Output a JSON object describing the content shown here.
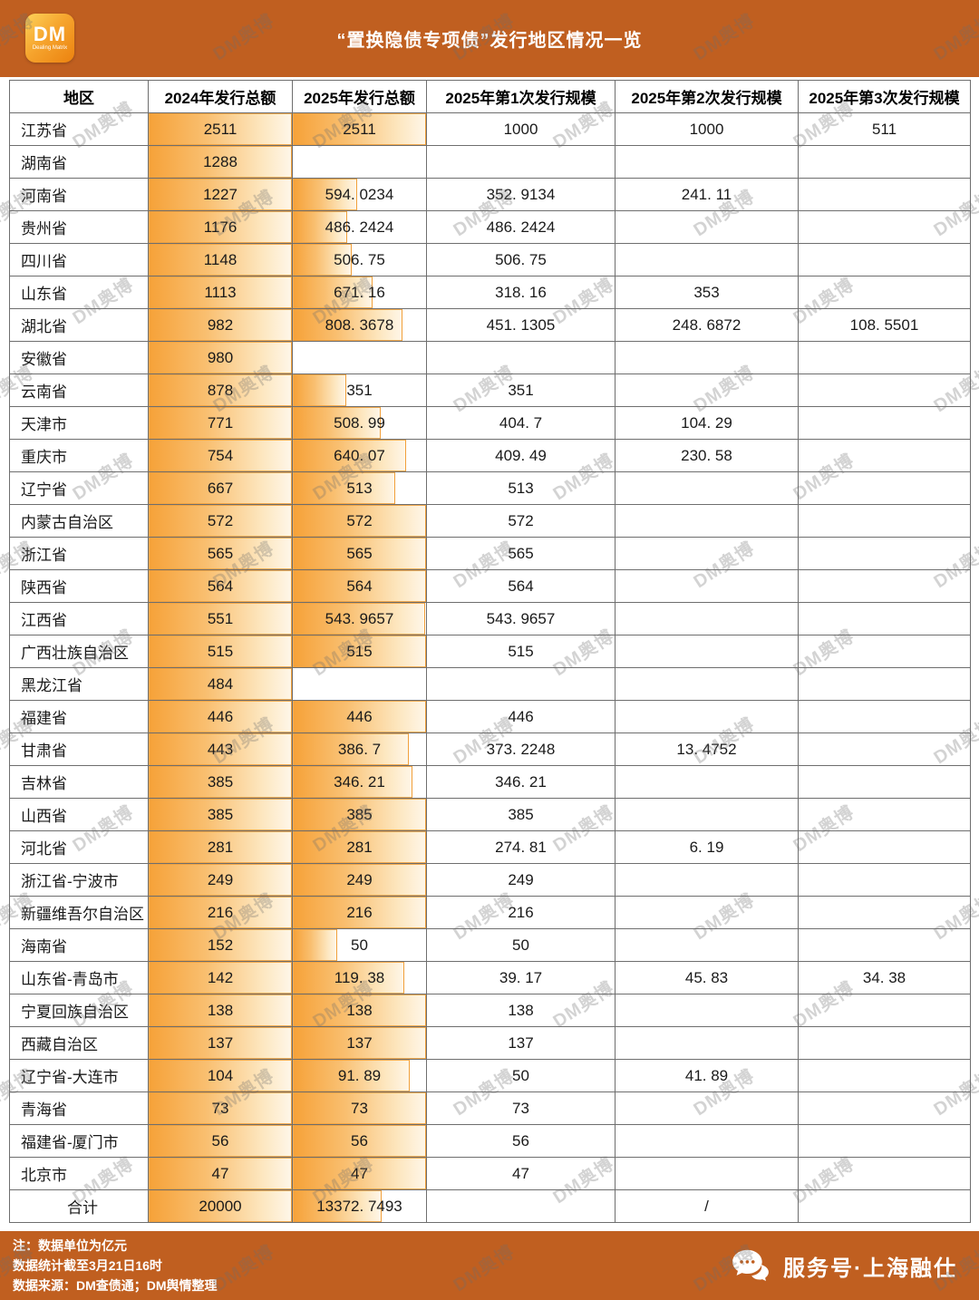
{
  "header": {
    "logo_text": "DM",
    "logo_subtext": "Dealing Matrix",
    "title": "“置换隐债专项债”发行地区情况一览"
  },
  "table": {
    "columns": [
      "地区",
      "2024年发行总额",
      "2025年发行总额",
      "2025年第1次发行规模",
      "2025年第2次发行规模",
      "2025年第3次发行规模"
    ],
    "rows": [
      {
        "region": "江苏省",
        "y2024": "2511",
        "y2025": "2511",
        "r1": "1000",
        "r2": "1000",
        "r3": "511",
        "bar2024": 100,
        "bar2025": 100
      },
      {
        "region": "湖南省",
        "y2024": "1288",
        "y2025": "",
        "r1": "",
        "r2": "",
        "r3": "",
        "bar2024": 100,
        "bar2025": null
      },
      {
        "region": "河南省",
        "y2024": "1227",
        "y2025": "594. 0234",
        "r1": "352. 9134",
        "r2": "241. 11",
        "r3": "",
        "bar2024": 100,
        "bar2025": 48
      },
      {
        "region": "贵州省",
        "y2024": "1176",
        "y2025": "486. 2424",
        "r1": "486. 2424",
        "r2": "",
        "r3": "",
        "bar2024": 100,
        "bar2025": 41
      },
      {
        "region": "四川省",
        "y2024": "1148",
        "y2025": "506. 75",
        "r1": "506. 75",
        "r2": "",
        "r3": "",
        "bar2024": 100,
        "bar2025": 44
      },
      {
        "region": "山东省",
        "y2024": "1113",
        "y2025": "671. 16",
        "r1": "318. 16",
        "r2": "353",
        "r3": "",
        "bar2024": 100,
        "bar2025": 60
      },
      {
        "region": "湖北省",
        "y2024": "982",
        "y2025": "808. 3678",
        "r1": "451. 1305",
        "r2": "248. 6872",
        "r3": "108. 5501",
        "bar2024": 100,
        "bar2025": 82
      },
      {
        "region": "安徽省",
        "y2024": "980",
        "y2025": "",
        "r1": "",
        "r2": "",
        "r3": "",
        "bar2024": 100,
        "bar2025": null
      },
      {
        "region": "云南省",
        "y2024": "878",
        "y2025": "351",
        "r1": "351",
        "r2": "",
        "r3": "",
        "bar2024": 100,
        "bar2025": 40
      },
      {
        "region": "天津市",
        "y2024": "771",
        "y2025": "508. 99",
        "r1": "404. 7",
        "r2": "104. 29",
        "r3": "",
        "bar2024": 100,
        "bar2025": 66
      },
      {
        "region": "重庆市",
        "y2024": "754",
        "y2025": "640. 07",
        "r1": "409. 49",
        "r2": "230. 58",
        "r3": "",
        "bar2024": 100,
        "bar2025": 85
      },
      {
        "region": "辽宁省",
        "y2024": "667",
        "y2025": "513",
        "r1": "513",
        "r2": "",
        "r3": "",
        "bar2024": 100,
        "bar2025": 77
      },
      {
        "region": "内蒙古自治区",
        "y2024": "572",
        "y2025": "572",
        "r1": "572",
        "r2": "",
        "r3": "",
        "bar2024": 100,
        "bar2025": 100
      },
      {
        "region": "浙江省",
        "y2024": "565",
        "y2025": "565",
        "r1": "565",
        "r2": "",
        "r3": "",
        "bar2024": 100,
        "bar2025": 100
      },
      {
        "region": "陕西省",
        "y2024": "564",
        "y2025": "564",
        "r1": "564",
        "r2": "",
        "r3": "",
        "bar2024": 100,
        "bar2025": 100
      },
      {
        "region": "江西省",
        "y2024": "551",
        "y2025": "543. 9657",
        "r1": "543. 9657",
        "r2": "",
        "r3": "",
        "bar2024": 100,
        "bar2025": 99
      },
      {
        "region": "广西壮族自治区",
        "y2024": "515",
        "y2025": "515",
        "r1": "515",
        "r2": "",
        "r3": "",
        "bar2024": 100,
        "bar2025": 100
      },
      {
        "region": "黑龙江省",
        "y2024": "484",
        "y2025": "",
        "r1": "",
        "r2": "",
        "r3": "",
        "bar2024": 100,
        "bar2025": null
      },
      {
        "region": "福建省",
        "y2024": "446",
        "y2025": "446",
        "r1": "446",
        "r2": "",
        "r3": "",
        "bar2024": 100,
        "bar2025": 100
      },
      {
        "region": "甘肃省",
        "y2024": "443",
        "y2025": "386. 7",
        "r1": "373. 2248",
        "r2": "13. 4752",
        "r3": "",
        "bar2024": 100,
        "bar2025": 87
      },
      {
        "region": "吉林省",
        "y2024": "385",
        "y2025": "346. 21",
        "r1": "346. 21",
        "r2": "",
        "r3": "",
        "bar2024": 100,
        "bar2025": 90
      },
      {
        "region": "山西省",
        "y2024": "385",
        "y2025": "385",
        "r1": "385",
        "r2": "",
        "r3": "",
        "bar2024": 100,
        "bar2025": 100
      },
      {
        "region": "河北省",
        "y2024": "281",
        "y2025": "281",
        "r1": "274. 81",
        "r2": "6. 19",
        "r3": "",
        "bar2024": 100,
        "bar2025": 100
      },
      {
        "region": "浙江省-宁波市",
        "y2024": "249",
        "y2025": "249",
        "r1": "249",
        "r2": "",
        "r3": "",
        "bar2024": 100,
        "bar2025": 100
      },
      {
        "region": "新疆维吾尔自治区",
        "y2024": "216",
        "y2025": "216",
        "r1": "216",
        "r2": "",
        "r3": "",
        "bar2024": 100,
        "bar2025": 100
      },
      {
        "region": "海南省",
        "y2024": "152",
        "y2025": "50",
        "r1": "50",
        "r2": "",
        "r3": "",
        "bar2024": 100,
        "bar2025": 33
      },
      {
        "region": "山东省-青岛市",
        "y2024": "142",
        "y2025": "119. 38",
        "r1": "39. 17",
        "r2": "45. 83",
        "r3": "34. 38",
        "bar2024": 100,
        "bar2025": 84
      },
      {
        "region": "宁夏回族自治区",
        "y2024": "138",
        "y2025": "138",
        "r1": "138",
        "r2": "",
        "r3": "",
        "bar2024": 100,
        "bar2025": 100
      },
      {
        "region": "西藏自治区",
        "y2024": "137",
        "y2025": "137",
        "r1": "137",
        "r2": "",
        "r3": "",
        "bar2024": 100,
        "bar2025": 100
      },
      {
        "region": "辽宁省-大连市",
        "y2024": "104",
        "y2025": "91. 89",
        "r1": "50",
        "r2": "41. 89",
        "r3": "",
        "bar2024": 100,
        "bar2025": 88
      },
      {
        "region": "青海省",
        "y2024": "73",
        "y2025": "73",
        "r1": "73",
        "r2": "",
        "r3": "",
        "bar2024": 100,
        "bar2025": 100
      },
      {
        "region": "福建省-厦门市",
        "y2024": "56",
        "y2025": "56",
        "r1": "56",
        "r2": "",
        "r3": "",
        "bar2024": 100,
        "bar2025": 100
      },
      {
        "region": "北京市",
        "y2024": "47",
        "y2025": "47",
        "r1": "47",
        "r2": "",
        "r3": "",
        "bar2024": 100,
        "bar2025": 100
      },
      {
        "region": "合计",
        "y2024": "20000",
        "y2025": "13372. 7493",
        "r1": "",
        "r2": "/",
        "r3": "",
        "bar2024": 100,
        "bar2025": 67,
        "total": true
      }
    ]
  },
  "footer": {
    "notes": [
      "注：数据单位为亿元",
      "数据统计截至3月21日16时",
      "数据来源：DM查债通；DM舆情整理"
    ],
    "service_label": "服务号·上海融仕"
  },
  "watermark": {
    "text": "DM奥博"
  },
  "colors": {
    "band": "#c05f20",
    "bar_start": "#f6a239",
    "bar_end": "#fef6e8"
  }
}
